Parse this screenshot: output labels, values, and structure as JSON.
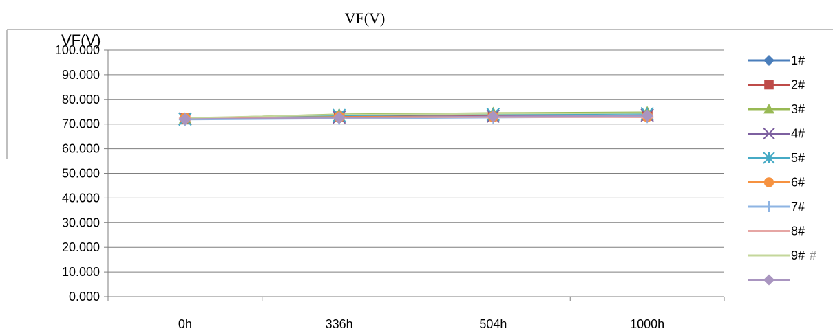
{
  "chart_data": {
    "type": "line",
    "title": "VF(V)",
    "ylabel": "VF(V)",
    "categories": [
      "0h",
      "336h",
      "504h",
      "1000h"
    ],
    "ylim": [
      0,
      100
    ],
    "ytick_values": [
      0,
      10,
      20,
      30,
      40,
      50,
      60,
      70,
      80,
      90,
      100
    ],
    "ytick_labels": [
      "0.000",
      "10.000",
      "20.000",
      "30.000",
      "40.000",
      "50.000",
      "60.000",
      "70.000",
      "80.000",
      "90.000",
      "100.000"
    ],
    "grid": true,
    "legend_position": "right",
    "series": [
      {
        "name": "1#",
        "color": "#4a7ebb",
        "marker": "diamond",
        "values": [
          72.0,
          72.5,
          73.0,
          73.3
        ]
      },
      {
        "name": "2#",
        "color": "#be4b48",
        "marker": "square",
        "values": [
          72.2,
          73.0,
          73.3,
          73.5
        ]
      },
      {
        "name": "3#",
        "color": "#98b954",
        "marker": "triangle",
        "values": [
          72.3,
          74.0,
          74.5,
          74.8
        ]
      },
      {
        "name": "4#",
        "color": "#7d60a0",
        "marker": "x",
        "values": [
          72.1,
          72.8,
          73.2,
          73.6
        ]
      },
      {
        "name": "5#",
        "color": "#46aac5",
        "marker": "star",
        "values": [
          72.0,
          73.5,
          73.9,
          74.2
        ]
      },
      {
        "name": "6#",
        "color": "#f69240",
        "marker": "circle",
        "values": [
          72.4,
          72.9,
          73.0,
          73.1
        ]
      },
      {
        "name": "7#",
        "color": "#8eb4e3",
        "marker": "plus",
        "values": [
          71.8,
          72.2,
          72.6,
          72.9
        ]
      },
      {
        "name": "8#",
        "color": "#e6a6a4",
        "marker": "dash",
        "values": [
          72.2,
          72.6,
          72.8,
          72.7
        ]
      },
      {
        "name": "9#",
        "color": "#c4d79b",
        "marker": "none",
        "values": [
          72.5,
          73.8,
          74.2,
          74.5
        ]
      },
      {
        "name": "",
        "color": "#a995c0",
        "marker": "diamond",
        "values": [
          72.0,
          72.6,
          73.1,
          73.4
        ]
      }
    ],
    "legend_extra_glyph": "#"
  }
}
